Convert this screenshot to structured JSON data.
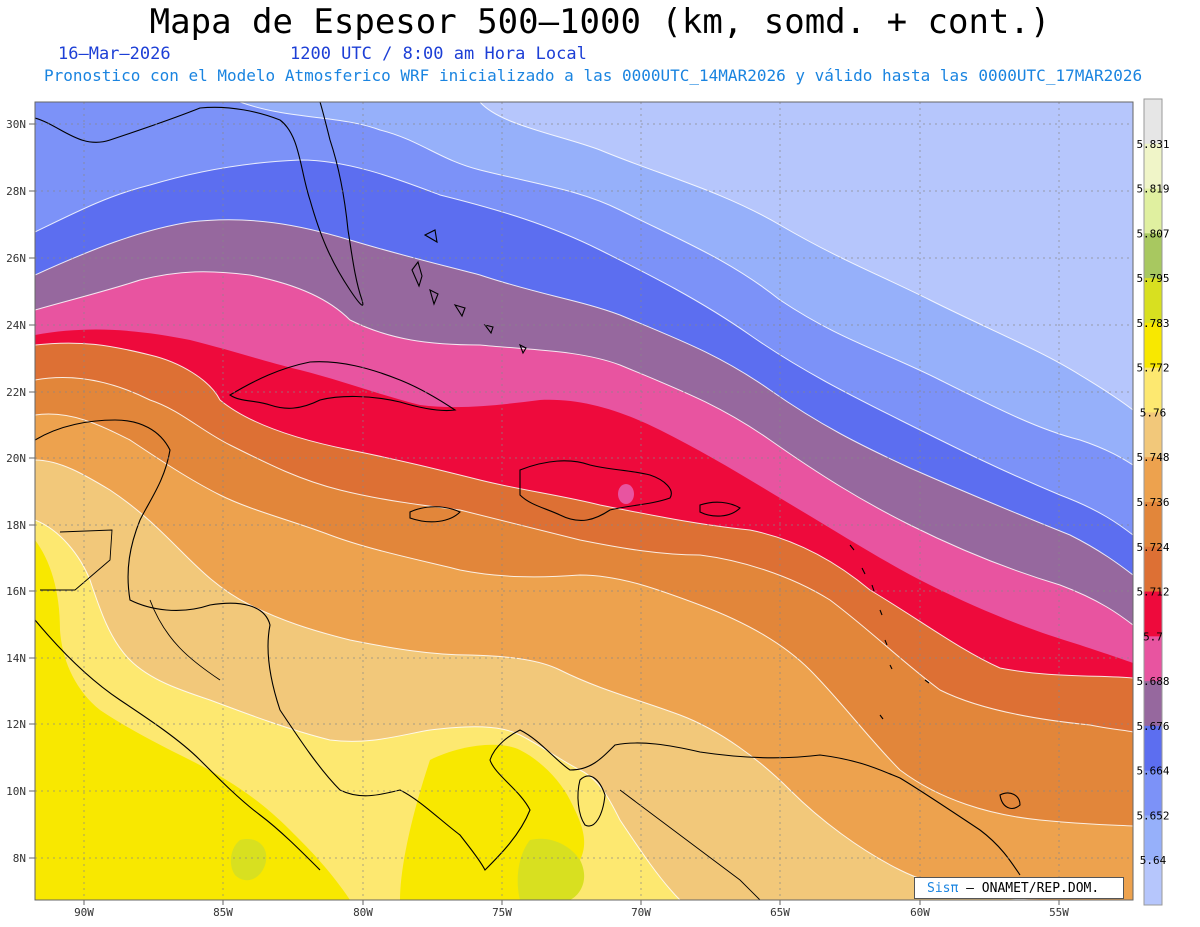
{
  "header": {
    "title": "Mapa de Espesor 500–1000 (km, somd. + cont.)",
    "date": "16–Mar–2026",
    "time": "1200 UTC / 8:00 am Hora Local",
    "forecast_note": "Pronostico con el Modelo Atmosferico WRF inicializado a las 0000UTC_14MAR2026 y válido hasta las  0000UTC_17MAR2026"
  },
  "map": {
    "lat_ticks": [
      "30N",
      "28N",
      "26N",
      "24N",
      "22N",
      "20N",
      "18N",
      "16N",
      "14N",
      "12N",
      "10N",
      "8N"
    ],
    "lon_ticks": [
      "90W",
      "85W",
      "80W",
      "75W",
      "70W",
      "65W",
      "60W",
      "55W"
    ]
  },
  "colorbar": {
    "levels": [
      "5.831",
      "5.819",
      "5.807",
      "5.795",
      "5.783",
      "5.772",
      "5.76",
      "5.748",
      "5.736",
      "5.724",
      "5.712",
      "5.7",
      "5.688",
      "5.676",
      "5.664",
      "5.652",
      "5.64"
    ],
    "colors": [
      "#e6e6e6",
      "#f0f5c8",
      "#e0f0a0",
      "#a8c860",
      "#d8e020",
      "#f8e800",
      "#fde870",
      "#f2c87a",
      "#eda24e",
      "#e2863a",
      "#dd7034",
      "#ee0a3c",
      "#e854a0",
      "#96689e",
      "#5c6ef0",
      "#7c92f8",
      "#96b0fa",
      "#b6c6fc"
    ]
  },
  "credit": {
    "brand": "Sisπ",
    "text": "– ONAMET/REP.DOM."
  },
  "colors": {
    "title_text": "#000000",
    "date_text": "#1d3fd6",
    "note_text": "#1a84e0"
  }
}
